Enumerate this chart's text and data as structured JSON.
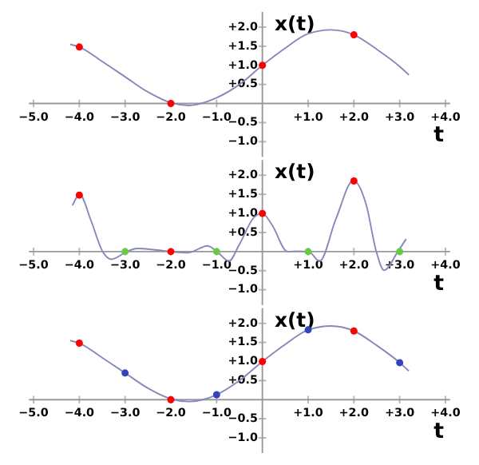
{
  "chart_data": [
    {
      "type": "line",
      "xlabel": "t",
      "ylabel": "x(t)",
      "xlim": [
        -5.1,
        4.1
      ],
      "ylim": [
        -1.4,
        2.4
      ],
      "xticks": [
        {
          "value": -5,
          "label": "−5.0"
        },
        {
          "value": -4,
          "label": "−4.0"
        },
        {
          "value": -3,
          "label": "−3.0"
        },
        {
          "value": -2,
          "label": "−2.0"
        },
        {
          "value": -1,
          "label": "−1.0"
        },
        {
          "value": 1,
          "label": "+1.0"
        },
        {
          "value": 2,
          "label": "+2.0"
        },
        {
          "value": 3,
          "label": "+3.0"
        },
        {
          "value": 4,
          "label": "+4.0"
        }
      ],
      "yticks": [
        {
          "value": -1,
          "label": "−1.0"
        },
        {
          "value": -0.5,
          "label": "−0.5"
        },
        {
          "value": 0.5,
          "label": "+0.5"
        },
        {
          "value": 1,
          "label": "+1.0"
        },
        {
          "value": 1.5,
          "label": "+1.5"
        },
        {
          "value": 2,
          "label": "+2.0"
        }
      ],
      "series": [
        {
          "marker": "none",
          "color": "#8888bb",
          "x": [
            -4.2,
            -4,
            -3.5,
            -3,
            -2.5,
            -2,
            -1.6,
            -1,
            -0.5,
            0,
            0.5,
            1,
            1.5,
            2,
            2.5,
            3,
            3.2
          ],
          "values": [
            1.55,
            1.48,
            1.1,
            0.7,
            0.3,
            0.02,
            -0.05,
            0.15,
            0.5,
            1.0,
            1.45,
            1.83,
            1.93,
            1.8,
            1.42,
            0.97,
            0.75
          ]
        },
        {
          "type": "scatter",
          "marker": "circle",
          "color": "#ff0000",
          "x": [
            -4,
            -2,
            0,
            2
          ],
          "values": [
            1.48,
            0,
            1.0,
            1.8
          ]
        }
      ]
    },
    {
      "type": "line",
      "xlabel": "t",
      "ylabel": "x(t)",
      "xlim": [
        -5.1,
        4.1
      ],
      "ylim": [
        -1.4,
        2.4
      ],
      "xticks": [
        {
          "value": -5,
          "label": "−5.0"
        },
        {
          "value": -4,
          "label": "−4.0"
        },
        {
          "value": -3,
          "label": "−3.0"
        },
        {
          "value": -2,
          "label": "−2.0"
        },
        {
          "value": -1,
          "label": "−1.0"
        },
        {
          "value": 1,
          "label": "+1.0"
        },
        {
          "value": 2,
          "label": "+2.0"
        },
        {
          "value": 3,
          "label": "+3.0"
        },
        {
          "value": 4,
          "label": "+4.0"
        }
      ],
      "yticks": [
        {
          "value": -1,
          "label": "−1.0"
        },
        {
          "value": -0.5,
          "label": "−0.5"
        },
        {
          "value": 0.5,
          "label": "+0.5"
        },
        {
          "value": 1,
          "label": "+1.0"
        },
        {
          "value": 1.5,
          "label": "+1.5"
        },
        {
          "value": 2,
          "label": "+2.0"
        }
      ],
      "series": [
        {
          "marker": "none",
          "color": "#8888bb",
          "x": [
            -4.15,
            -3.99,
            -3.75,
            -3.49,
            -3.3,
            -2.96,
            -2.74,
            -2.3,
            -2.0,
            -1.63,
            -1.2,
            -0.99,
            -0.73,
            -0.51,
            -0.18,
            0,
            0.21,
            0.55,
            0.77,
            1.01,
            1.25,
            1.6,
            1.99,
            2.27,
            2.49,
            2.66,
            2.96,
            3.14
          ],
          "values": [
            1.21,
            1.49,
            0.83,
            0,
            -0.2,
            0,
            0.08,
            0.04,
            0,
            -0.03,
            0.15,
            0,
            -0.25,
            0.17,
            0.9,
            1.0,
            0.7,
            0,
            0.01,
            0,
            -0.25,
            0.83,
            1.86,
            1.22,
            0,
            -0.49,
            0,
            0.33
          ]
        },
        {
          "type": "scatter",
          "marker": "circle",
          "color": "#ff0000",
          "x": [
            -4,
            -2,
            0,
            2
          ],
          "values": [
            1.48,
            0,
            1.0,
            1.85
          ]
        },
        {
          "type": "scatter",
          "marker": "circle",
          "color": "#66cc44",
          "x": [
            -3,
            -1,
            1,
            3
          ],
          "values": [
            0,
            0,
            0,
            0
          ]
        }
      ]
    },
    {
      "type": "line",
      "xlabel": "t",
      "ylabel": "x(t)",
      "xlim": [
        -5.1,
        4.1
      ],
      "ylim": [
        -1.4,
        2.4
      ],
      "xticks": [
        {
          "value": -5,
          "label": "−5.0"
        },
        {
          "value": -4,
          "label": "−4.0"
        },
        {
          "value": -3,
          "label": "−3.0"
        },
        {
          "value": -2,
          "label": "−2.0"
        },
        {
          "value": -1,
          "label": "−1.0"
        },
        {
          "value": 1,
          "label": "+1.0"
        },
        {
          "value": 2,
          "label": "+2.0"
        },
        {
          "value": 3,
          "label": "+3.0"
        },
        {
          "value": 4,
          "label": "+4.0"
        }
      ],
      "yticks": [
        {
          "value": -1,
          "label": "−1.0"
        },
        {
          "value": -0.5,
          "label": "−0.5"
        },
        {
          "value": 0.5,
          "label": "+0.5"
        },
        {
          "value": 1,
          "label": "+1.0"
        },
        {
          "value": 1.5,
          "label": "+1.5"
        },
        {
          "value": 2,
          "label": "+2.0"
        }
      ],
      "series": [
        {
          "marker": "none",
          "color": "#8888bb",
          "x": [
            -4.2,
            -4,
            -3.5,
            -3,
            -2.5,
            -2,
            -1.6,
            -1,
            -0.5,
            0,
            0.5,
            1,
            1.5,
            2,
            2.5,
            3,
            3.2
          ],
          "values": [
            1.55,
            1.48,
            1.1,
            0.7,
            0.3,
            0.02,
            -0.05,
            0.13,
            0.5,
            1.0,
            1.45,
            1.83,
            1.93,
            1.8,
            1.42,
            0.97,
            0.75
          ]
        },
        {
          "type": "scatter",
          "marker": "circle",
          "color": "#ff0000",
          "x": [
            -4,
            -2,
            0,
            2
          ],
          "values": [
            1.48,
            0,
            1.0,
            1.8
          ]
        },
        {
          "type": "scatter",
          "marker": "circle",
          "color": "#3344bb",
          "x": [
            -3,
            -1,
            1,
            3
          ],
          "values": [
            0.7,
            0.13,
            1.83,
            0.97
          ]
        }
      ]
    }
  ]
}
